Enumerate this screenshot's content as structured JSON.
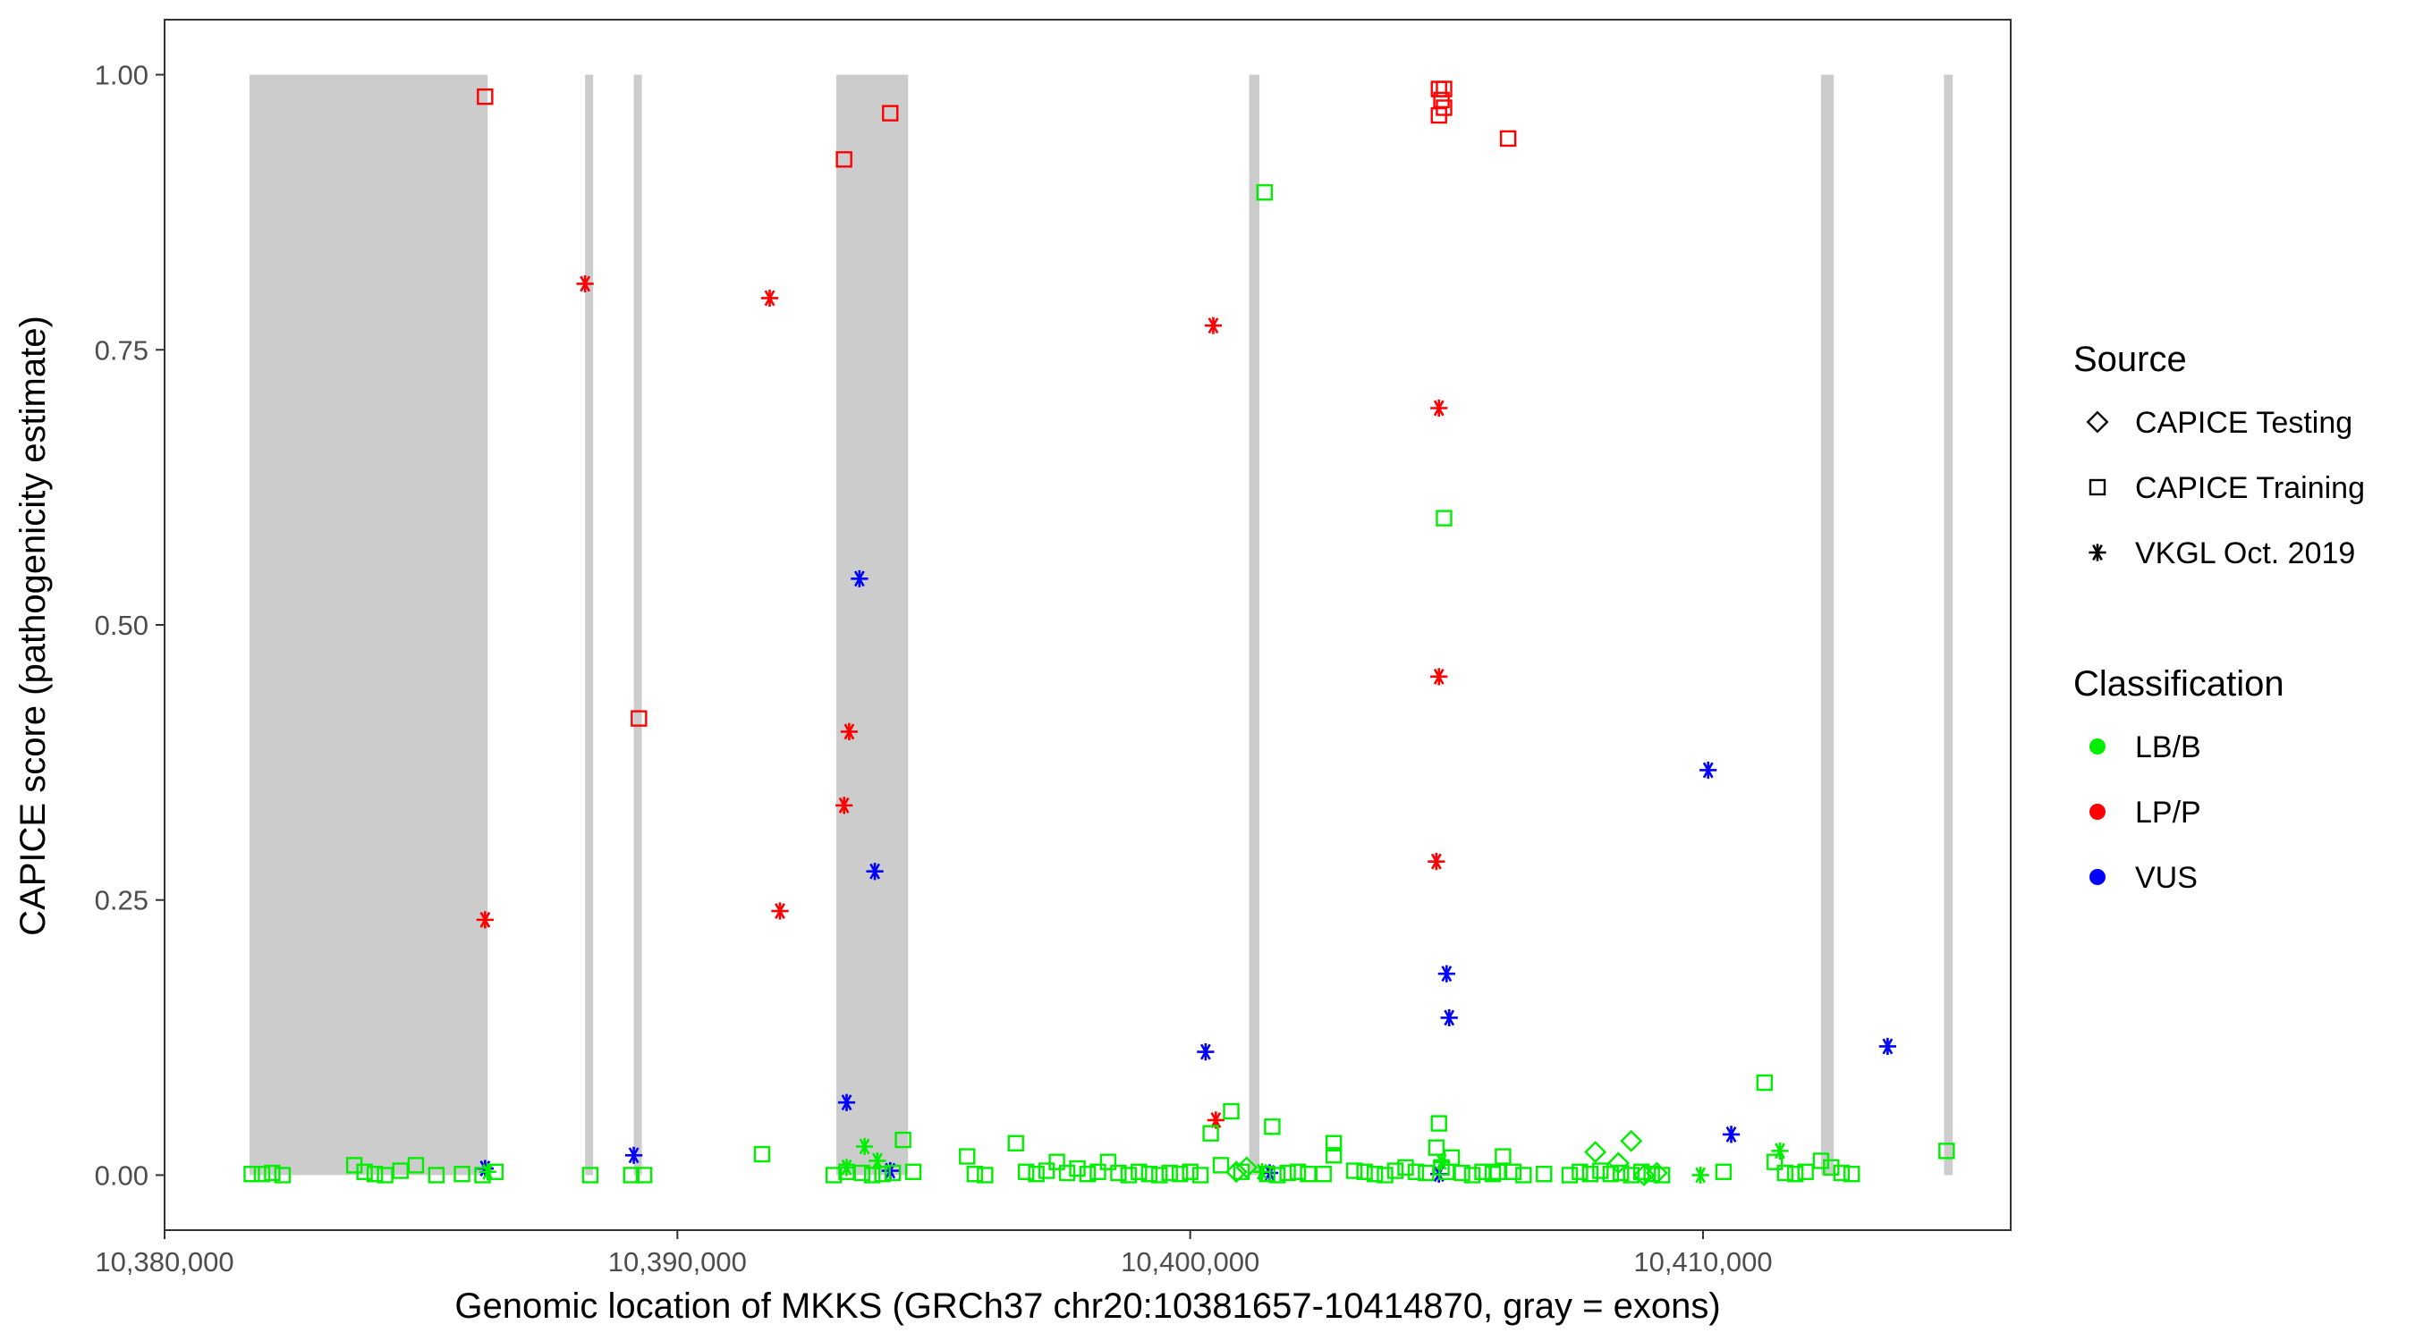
{
  "chart_data": {
    "type": "scatter",
    "xlabel": "Genomic location of MKKS (GRCh37 chr20:10381657-10414870, gray = exons)",
    "ylabel": "CAPICE score (pathogenicity estimate)",
    "xlim": [
      10380000,
      10416000
    ],
    "ylim": [
      -0.05,
      1.05
    ],
    "x_ticks": [
      10380000,
      10390000,
      10400000,
      10410000
    ],
    "x_tick_labels": [
      "10,380,000",
      "10,390,000",
      "10,400,000",
      "10,410,000"
    ],
    "y_ticks": [
      0,
      0.25,
      0.5,
      0.75,
      1.0
    ],
    "y_tick_labels": [
      "0.00",
      "0.25",
      "0.50",
      "0.75",
      "1.00"
    ],
    "grid": false,
    "legend_position": "right",
    "exons": [
      [
        10381657,
        10386300
      ],
      [
        10388200,
        10388300
      ],
      [
        10389150,
        10389300
      ],
      [
        10393100,
        10394500
      ],
      [
        10401150,
        10401350
      ],
      [
        10412300,
        10412550
      ],
      [
        10414700,
        10414870
      ]
    ],
    "legend": {
      "source_title": "Source",
      "source_items": [
        {
          "label": "CAPICE Testing",
          "shape": "diamond"
        },
        {
          "label": "CAPICE Training",
          "shape": "square"
        },
        {
          "label": "VKGL Oct. 2019",
          "shape": "asterisk"
        }
      ],
      "class_title": "Classification",
      "class_items": [
        {
          "label": "LB/B",
          "color": "#00ee00"
        },
        {
          "label": "LP/P",
          "color": "#ff0000"
        },
        {
          "label": "VUS",
          "color": "#0000ff"
        }
      ]
    },
    "series": [
      {
        "source": "CAPICE Training",
        "classification": "LP/P",
        "color": "#ff0000",
        "shape": "square",
        "x": [
          10386250,
          10389250,
          10393250,
          10394150,
          10404850,
          10404950,
          10404900,
          10404950,
          10404850,
          10406200
        ],
        "y": [
          0.98,
          0.415,
          0.923,
          0.965,
          0.987,
          0.987,
          0.977,
          0.97,
          0.963,
          0.942
        ]
      },
      {
        "source": "VKGL Oct. 2019",
        "classification": "LP/P",
        "color": "#ff0000",
        "shape": "asterisk",
        "x": [
          10386250,
          10388200,
          10391800,
          10392000,
          10393250,
          10393350,
          10400450,
          10400500,
          10404850,
          10404850,
          10404800
        ],
        "y": [
          0.232,
          0.81,
          0.797,
          0.24,
          0.336,
          0.403,
          0.772,
          0.05,
          0.697,
          0.453,
          0.285
        ]
      },
      {
        "source": "VKGL Oct. 2019",
        "classification": "VUS",
        "color": "#0000ff",
        "shape": "asterisk",
        "x": [
          10386250,
          10389150,
          10393300,
          10393550,
          10393850,
          10394150,
          10400300,
          10401550,
          10404850,
          10405000,
          10405050,
          10410100,
          10410550,
          10413600
        ],
        "y": [
          0.006,
          0.018,
          0.066,
          0.542,
          0.276,
          0.004,
          0.112,
          0.002,
          0.001,
          0.183,
          0.143,
          0.368,
          0.037,
          0.117
        ]
      },
      {
        "source": "CAPICE Training",
        "classification": "LB/B",
        "color": "#00ee00",
        "shape": "square",
        "x": [
          10381700,
          10381900,
          10382100,
          10382300,
          10383700,
          10383900,
          10384100,
          10384300,
          10384600,
          10384900,
          10385300,
          10385800,
          10386200,
          10386450,
          10388300,
          10389100,
          10389350,
          10391650,
          10393050,
          10393300,
          10393600,
          10393800,
          10394000,
          10394200,
          10394400,
          10394600,
          10395650,
          10395800,
          10396000,
          10396600,
          10396800,
          10397000,
          10397200,
          10397400,
          10397600,
          10397800,
          10398000,
          10398200,
          10398400,
          10398600,
          10398800,
          10399000,
          10399200,
          10399400,
          10399600,
          10399800,
          10400000,
          10400200,
          10400400,
          10400600,
          10400800,
          10401000,
          10401500,
          10401600,
          10401700,
          10401900,
          10402100,
          10402300,
          10402600,
          10402800,
          10402800,
          10403200,
          10403400,
          10403600,
          10403800,
          10404000,
          10404200,
          10404400,
          10404600,
          10404800,
          10404850,
          10404900,
          10404950,
          10405000,
          10405100,
          10405300,
          10405500,
          10405700,
          10405900,
          10406000,
          10406100,
          10406300,
          10406500,
          10406900,
          10407400,
          10407600,
          10407800,
          10408000,
          10408200,
          10408400,
          10408600,
          10408800,
          10409000,
          10409200,
          10410400,
          10411200,
          10411400,
          10411600,
          10411800,
          10412000,
          10412300,
          10412500,
          10412700,
          10412900,
          10414750
        ],
        "y": [
          0.001,
          0.001,
          0.002,
          0.0,
          0.009,
          0.003,
          0.001,
          0.0,
          0.004,
          0.009,
          0.0,
          0.001,
          0.0,
          0.003,
          0.0,
          0.0,
          0.0,
          0.019,
          0.0,
          0.003,
          0.002,
          0.0,
          0.001,
          0.002,
          0.032,
          0.003,
          0.017,
          0.001,
          0.0,
          0.029,
          0.003,
          0.001,
          0.004,
          0.012,
          0.002,
          0.006,
          0.001,
          0.003,
          0.012,
          0.002,
          0.0,
          0.003,
          0.001,
          0.0,
          0.002,
          0.001,
          0.003,
          0.0,
          0.038,
          0.009,
          0.058,
          0.003,
          0.001,
          0.044,
          0.0,
          0.002,
          0.003,
          0.001,
          0.001,
          0.018,
          0.029,
          0.004,
          0.003,
          0.001,
          0.0,
          0.004,
          0.007,
          0.003,
          0.002,
          0.025,
          0.047,
          0.007,
          0.597,
          0.003,
          0.016,
          0.002,
          0.0,
          0.003,
          0.001,
          0.003,
          0.017,
          0.003,
          0.0,
          0.001,
          0.0,
          0.003,
          0.001,
          0.004,
          0.001,
          0.002,
          0.0,
          0.003,
          0.001,
          0.0,
          0.003,
          0.084,
          0.012,
          0.002,
          0.001,
          0.003,
          0.013,
          0.007,
          0.002,
          0.001,
          0.022
        ],
        "extra_x": [
          10401450
        ],
        "extra_y": [
          0.893
        ]
      },
      {
        "source": "VKGL Oct. 2019",
        "classification": "LB/B",
        "color": "#00ee00",
        "shape": "asterisk",
        "x": [
          10386300,
          10393300,
          10393650,
          10393900,
          10401400,
          10404900,
          10409950,
          10411500
        ],
        "y": [
          0.003,
          0.007,
          0.026,
          0.013,
          0.003,
          0.012,
          0.0,
          0.022
        ]
      },
      {
        "source": "CAPICE Testing",
        "classification": "LB/B",
        "color": "#00ee00",
        "shape": "diamond",
        "x": [
          10400900,
          10401100,
          10407900,
          10408350,
          10408600,
          10408850,
          10409100
        ],
        "y": [
          0.003,
          0.007,
          0.021,
          0.011,
          0.031,
          0.0,
          0.002
        ]
      }
    ]
  }
}
